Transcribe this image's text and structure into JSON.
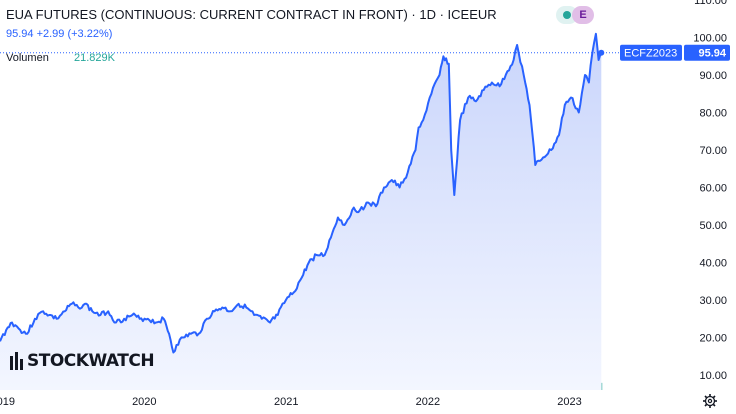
{
  "header": {
    "title": "EUA FUTURES (CONTINUOUS: CURRENT CONTRACT IN FRONT) · 1D · ICEEUR",
    "quote": "95.94 +2.99 (+3.22%)",
    "volume_label": "Volumen",
    "volume_value": "21.829K",
    "badge_e": "E"
  },
  "logo": {
    "text": "STOCKWATCH"
  },
  "colors": {
    "line": "#2962ff",
    "fill_top": "#c9d5fb",
    "fill_bottom": "#f3f6ff",
    "volume_up": "#26a69a",
    "volume_down": "#ef5350",
    "axis_text": "#131722",
    "price_tag": "#2962ff"
  },
  "chart_data": {
    "type": "line",
    "symbol_label": "ECFZ2023",
    "last_value_label": "95.94",
    "last_value": 95.94,
    "ylim": [
      6,
      110
    ],
    "y_ticks": [
      10,
      20,
      30,
      40,
      50,
      60,
      70,
      80,
      90,
      100,
      110
    ],
    "y_tick_labels": [
      "10.00",
      "20.00",
      "30.00",
      "40.00",
      "50.00",
      "60.00",
      "70.00",
      "80.00",
      "90.00",
      "100.00",
      "110.00"
    ],
    "xlim": [
      "2018-12-25",
      "2023-03-31"
    ],
    "x_ticks": [
      "2019-01-01",
      "2020-01-01",
      "2021-01-01",
      "2022-01-01",
      "2023-01-01"
    ],
    "x_tick_labels": [
      "2019",
      "2020",
      "2021",
      "2022",
      "2023"
    ],
    "series": [
      {
        "x": [
          "2018-12-25",
          "2019-01-10",
          "2019-01-25",
          "2019-02-15",
          "2019-03-05",
          "2019-03-25",
          "2019-04-15",
          "2019-05-01",
          "2019-05-20",
          "2019-06-10",
          "2019-06-28",
          "2019-07-15",
          "2019-08-01",
          "2019-08-20",
          "2019-09-10",
          "2019-09-30",
          "2019-10-20",
          "2019-11-10",
          "2019-12-01",
          "2019-12-20",
          "2020-01-10",
          "2020-01-31",
          "2020-02-20",
          "2020-03-05",
          "2020-03-16",
          "2020-03-24",
          "2020-04-10",
          "2020-04-30",
          "2020-05-20",
          "2020-06-10",
          "2020-06-30",
          "2020-07-20",
          "2020-08-10",
          "2020-08-31",
          "2020-09-20",
          "2020-10-10",
          "2020-10-30",
          "2020-11-20",
          "2020-12-10",
          "2020-12-31",
          "2021-01-20",
          "2021-02-10",
          "2021-02-28",
          "2021-03-20",
          "2021-04-10",
          "2021-04-30",
          "2021-05-14",
          "2021-05-31",
          "2021-06-20",
          "2021-07-10",
          "2021-07-31",
          "2021-08-20",
          "2021-09-10",
          "2021-09-30",
          "2021-10-20",
          "2021-11-10",
          "2021-11-30",
          "2021-12-08",
          "2021-12-20",
          "2022-01-10",
          "2022-01-31",
          "2022-02-10",
          "2022-02-24",
          "2022-03-02",
          "2022-03-10",
          "2022-03-25",
          "2022-04-15",
          "2022-05-05",
          "2022-05-25",
          "2022-06-15",
          "2022-07-05",
          "2022-07-25",
          "2022-08-10",
          "2022-08-19",
          "2022-09-05",
          "2022-09-20",
          "2022-10-05",
          "2022-10-25",
          "2022-11-15",
          "2022-12-05",
          "2022-12-20",
          "2023-01-05",
          "2023-01-25",
          "2023-02-10",
          "2023-02-20",
          "2023-03-01",
          "2023-03-10",
          "2023-03-17",
          "2023-03-24"
        ],
        "y": [
          19,
          22,
          24,
          22,
          21,
          25,
          27,
          26,
          25,
          27,
          29,
          28,
          29,
          27,
          26,
          27,
          24,
          25,
          26,
          25,
          25,
          24,
          25,
          21,
          16,
          18,
          20,
          21,
          21,
          25,
          27,
          28,
          27,
          29,
          28,
          26,
          25,
          24,
          26,
          30,
          32,
          36,
          40,
          42,
          42,
          48,
          52,
          50,
          54,
          54,
          56,
          55,
          60,
          62,
          60,
          64,
          70,
          76,
          78,
          85,
          90,
          95,
          93,
          70,
          58,
          78,
          84,
          83,
          86,
          88,
          87,
          91,
          94,
          98,
          90,
          82,
          66,
          68,
          70,
          74,
          82,
          84,
          80,
          90,
          88,
          96,
          101,
          94,
          96
        ]
      }
    ]
  }
}
